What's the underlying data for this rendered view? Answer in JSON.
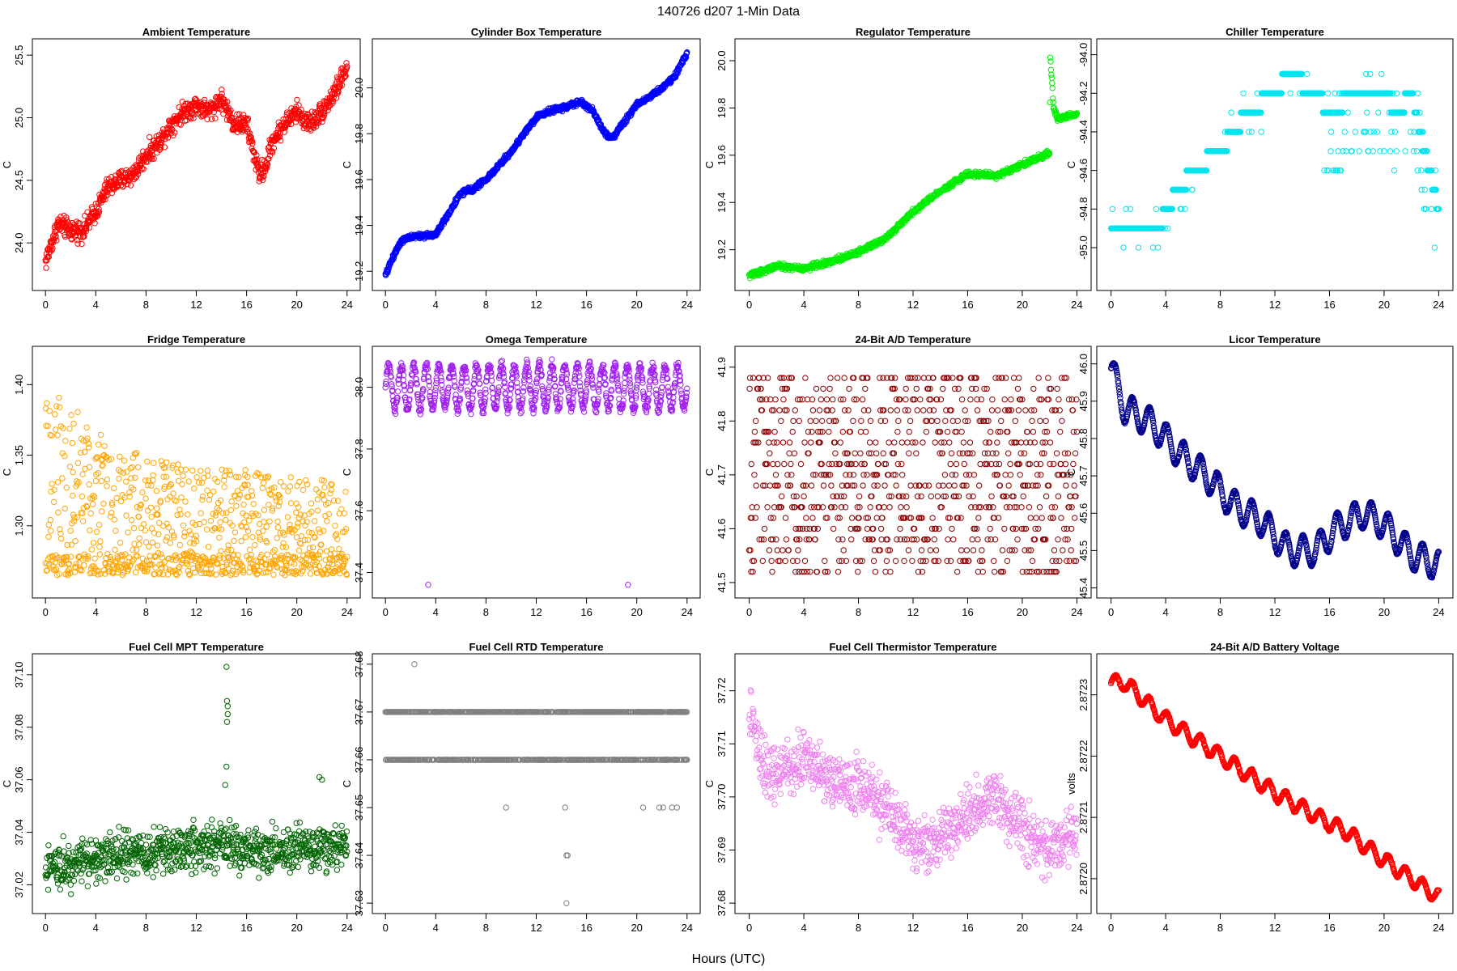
{
  "figure": {
    "title": "140726    d207    1-Min Data",
    "xlabel": "Hours (UTC)"
  },
  "chart_data": [
    {
      "type": "scatter",
      "title": "Ambient Temperature",
      "ylabel": "C",
      "color": "#ff0000",
      "xlim": [
        0,
        24
      ],
      "xticks": [
        0,
        4,
        8,
        12,
        16,
        20,
        24
      ],
      "ylim": [
        23.7,
        25.55
      ],
      "yticks": [
        24.0,
        24.5,
        25.0,
        25.5
      ],
      "ytick_labels": [
        "24.0",
        "24.5",
        "25.0",
        "25.5"
      ],
      "pattern": "noisy",
      "trend": [
        [
          0,
          23.85
        ],
        [
          1,
          24.15
        ],
        [
          2,
          24.1
        ],
        [
          3,
          24.1
        ],
        [
          4,
          24.25
        ],
        [
          5,
          24.45
        ],
        [
          6,
          24.5
        ],
        [
          7,
          24.55
        ],
        [
          8,
          24.7
        ],
        [
          9,
          24.8
        ],
        [
          10,
          24.95
        ],
        [
          11,
          25.05
        ],
        [
          12,
          25.1
        ],
        [
          13,
          25.05
        ],
        [
          14,
          25.15
        ],
        [
          15,
          24.95
        ],
        [
          16,
          24.95
        ],
        [
          17,
          24.55
        ],
        [
          17.5,
          24.6
        ],
        [
          18,
          24.8
        ],
        [
          19,
          24.95
        ],
        [
          20,
          25.05
        ],
        [
          21,
          24.95
        ],
        [
          22,
          25.05
        ],
        [
          23,
          25.2
        ],
        [
          24,
          25.4
        ]
      ],
      "noise": 0.07
    },
    {
      "type": "scatter",
      "title": "Cylinder Box Temperature",
      "ylabel": "C",
      "color": "#0000ff",
      "xlim": [
        0,
        24
      ],
      "xticks": [
        0,
        4,
        8,
        12,
        16,
        20,
        24
      ],
      "ylim": [
        19.16,
        20.17
      ],
      "yticks": [
        19.2,
        19.4,
        19.6,
        19.8,
        20.0
      ],
      "ytick_labels": [
        "19.2",
        "19.4",
        "19.6",
        "19.8",
        "20.0"
      ],
      "pattern": "smooth",
      "trend": [
        [
          0,
          19.18
        ],
        [
          0.5,
          19.25
        ],
        [
          1.2,
          19.33
        ],
        [
          2,
          19.35
        ],
        [
          4,
          19.36
        ],
        [
          5,
          19.45
        ],
        [
          6,
          19.54
        ],
        [
          7,
          19.56
        ],
        [
          8,
          19.6
        ],
        [
          9,
          19.66
        ],
        [
          10,
          19.72
        ],
        [
          11,
          19.8
        ],
        [
          12,
          19.87
        ],
        [
          13,
          19.9
        ],
        [
          14,
          19.91
        ],
        [
          15.5,
          19.94
        ],
        [
          16.5,
          19.9
        ],
        [
          17.5,
          19.8
        ],
        [
          18,
          19.78
        ],
        [
          19,
          19.85
        ],
        [
          20,
          19.93
        ],
        [
          21,
          19.96
        ],
        [
          22,
          20.0
        ],
        [
          23,
          20.05
        ],
        [
          24,
          20.15
        ]
      ],
      "noise": 0.01
    },
    {
      "type": "scatter",
      "title": "Regulator Temperature",
      "ylabel": "C",
      "color": "#00ee00",
      "xlim": [
        0,
        24
      ],
      "xticks": [
        0,
        4,
        8,
        12,
        16,
        20,
        24
      ],
      "ylim": [
        19.07,
        20.05
      ],
      "yticks": [
        19.2,
        19.4,
        19.6,
        19.8,
        20.0
      ],
      "ytick_labels": [
        "19.2",
        "19.4",
        "19.6",
        "19.8",
        "20.0"
      ],
      "pattern": "smooth",
      "trend": [
        [
          0,
          19.09
        ],
        [
          2,
          19.13
        ],
        [
          4,
          19.12
        ],
        [
          6,
          19.15
        ],
        [
          8,
          19.19
        ],
        [
          10,
          19.25
        ],
        [
          12,
          19.36
        ],
        [
          14,
          19.45
        ],
        [
          16,
          19.52
        ],
        [
          17,
          19.52
        ],
        [
          18,
          19.51
        ],
        [
          20,
          19.56
        ],
        [
          22,
          19.61
        ],
        [
          22.05,
          20.02
        ],
        [
          22.3,
          19.8
        ],
        [
          22.6,
          19.75
        ],
        [
          24,
          19.78
        ]
      ],
      "noise": 0.01
    },
    {
      "type": "scatter",
      "title": "Chiller Temperature",
      "ylabel": "C",
      "color": "#00e5ee",
      "xlim": [
        0,
        24
      ],
      "xticks": [
        0,
        4,
        8,
        12,
        16,
        20,
        24
      ],
      "ylim": [
        -95.17,
        -93.97
      ],
      "yticks": [
        -95.0,
        -94.8,
        -94.6,
        -94.4,
        -94.2,
        -94.0
      ],
      "ytick_labels": [
        "-95.0",
        "-94.8",
        "-94.6",
        "-94.4",
        "-94.2",
        "-94.0"
      ],
      "pattern": "steps",
      "trend": [
        [
          0,
          -94.9
        ],
        [
          3.5,
          -94.9
        ],
        [
          4,
          -94.8
        ],
        [
          5,
          -94.7
        ],
        [
          6,
          -94.6
        ],
        [
          8,
          -94.5
        ],
        [
          9,
          -94.4
        ],
        [
          10,
          -94.3
        ],
        [
          12,
          -94.2
        ],
        [
          13,
          -94.1
        ],
        [
          15,
          -94.2
        ],
        [
          16,
          -94.3
        ],
        [
          18,
          -94.2
        ],
        [
          20,
          -94.2
        ],
        [
          21,
          -94.3
        ],
        [
          22,
          -94.2
        ],
        [
          23,
          -94.5
        ],
        [
          24,
          -94.8
        ]
      ],
      "noise": 0.0
    },
    {
      "type": "scatter",
      "title": "Fridge Temperature",
      "ylabel": "C",
      "color": "#ffa500",
      "xlim": [
        0,
        24
      ],
      "xticks": [
        0,
        4,
        8,
        12,
        16,
        20,
        24
      ],
      "ylim": [
        1.256,
        1.42
      ],
      "yticks": [
        1.3,
        1.35,
        1.4
      ],
      "ytick_labels": [
        "1.30",
        "1.35",
        "1.40"
      ],
      "pattern": "fridge",
      "trend": [
        [
          0,
          1.4
        ],
        [
          4,
          1.37
        ],
        [
          8,
          1.35
        ],
        [
          12,
          1.34
        ],
        [
          16,
          1.34
        ],
        [
          20,
          1.335
        ],
        [
          24,
          1.33
        ]
      ],
      "noise": 0.0
    },
    {
      "type": "scatter",
      "title": "Omega Temperature",
      "ylabel": "C",
      "color": "#a020f0",
      "xlim": [
        0,
        24
      ],
      "xticks": [
        0,
        4,
        8,
        12,
        16,
        20,
        24
      ],
      "ylim": [
        37.35,
        38.1
      ],
      "yticks": [
        37.4,
        37.6,
        37.8,
        38.0
      ],
      "ytick_labels": [
        "37.4",
        "37.6",
        "37.8",
        "38.0"
      ],
      "pattern": "osc",
      "trend": [
        [
          0,
          38.0
        ],
        [
          24,
          38.0
        ]
      ],
      "amplitude": 0.07,
      "period": 1.0,
      "noise": 0.015,
      "outliers": [
        [
          3.4,
          37.36
        ],
        [
          19.3,
          37.36
        ]
      ]
    },
    {
      "type": "scatter",
      "title": "24-Bit A/D Temperature",
      "ylabel": "C",
      "color": "#8b0000",
      "xlim": [
        0,
        24
      ],
      "xticks": [
        0,
        4,
        8,
        12,
        16,
        20,
        24
      ],
      "ylim": [
        41.49,
        41.92
      ],
      "yticks": [
        41.5,
        41.6,
        41.7,
        41.8,
        41.9
      ],
      "ytick_labels": [
        "41.5",
        "41.6",
        "41.7",
        "41.8",
        "41.9"
      ],
      "pattern": "quantized",
      "trend": [
        [
          0,
          41.7
        ],
        [
          24,
          41.72
        ]
      ],
      "levels": [
        41.52,
        41.54,
        41.56,
        41.58,
        41.6,
        41.62,
        41.64,
        41.66,
        41.68,
        41.7,
        41.72,
        41.74,
        41.76,
        41.78,
        41.8,
        41.82,
        41.84,
        41.86,
        41.88
      ],
      "noise": 0.0
    },
    {
      "type": "scatter",
      "title": "Licor Temperature",
      "ylabel": "C",
      "color": "#00008b",
      "xlim": [
        0,
        24
      ],
      "xticks": [
        0,
        4,
        8,
        12,
        16,
        20,
        24
      ],
      "ylim": [
        45.4,
        46.02
      ],
      "yticks": [
        45.4,
        45.5,
        45.6,
        45.7,
        45.8,
        45.9,
        46.0
      ],
      "ytick_labels": [
        "45.4",
        "45.5",
        "45.6",
        "45.7",
        "45.8",
        "45.9",
        "46.0"
      ],
      "pattern": "osc",
      "trend": [
        [
          0,
          45.99
        ],
        [
          1,
          45.88
        ],
        [
          3,
          45.84
        ],
        [
          5,
          45.76
        ],
        [
          7,
          45.7
        ],
        [
          9,
          45.62
        ],
        [
          11,
          45.58
        ],
        [
          13,
          45.5
        ],
        [
          15,
          45.5
        ],
        [
          16.5,
          45.56
        ],
        [
          18.5,
          45.6
        ],
        [
          20,
          45.57
        ],
        [
          22,
          45.49
        ],
        [
          24,
          45.46
        ]
      ],
      "amplitude": 0.04,
      "period": 1.25,
      "noise": 0.002
    },
    {
      "type": "scatter",
      "title": "Fuel Cell MPT Temperature",
      "ylabel": "C",
      "color": "#006400",
      "xlim": [
        0,
        24
      ],
      "xticks": [
        0,
        4,
        8,
        12,
        16,
        20,
        24
      ],
      "ylim": [
        37.013,
        37.104
      ],
      "yticks": [
        37.02,
        37.04,
        37.06,
        37.08,
        37.1
      ],
      "ytick_labels": [
        "37.02",
        "37.04",
        "37.06",
        "37.08",
        "37.10"
      ],
      "pattern": "noisy",
      "trend": [
        [
          0,
          37.027
        ],
        [
          4,
          37.03
        ],
        [
          8,
          37.032
        ],
        [
          12,
          37.034
        ],
        [
          14,
          37.036
        ],
        [
          16,
          37.033
        ],
        [
          20,
          37.034
        ],
        [
          24,
          37.035
        ]
      ],
      "noise": 0.0075,
      "outliers": [
        [
          14.4,
          37.103
        ],
        [
          14.45,
          37.09
        ],
        [
          14.5,
          37.088
        ],
        [
          14.45,
          37.082
        ],
        [
          14.5,
          37.085
        ],
        [
          14.4,
          37.065
        ],
        [
          14.3,
          37.058
        ],
        [
          21.8,
          37.061
        ],
        [
          22.0,
          37.06
        ]
      ]
    },
    {
      "type": "scatter",
      "title": "Fuel Cell RTD Temperature",
      "ylabel": "C",
      "color": "#808080",
      "xlim": [
        0,
        24
      ],
      "xticks": [
        0,
        4,
        8,
        12,
        16,
        20,
        24
      ],
      "ylim": [
        37.63,
        37.68
      ],
      "yticks": [
        37.63,
        37.64,
        37.65,
        37.66,
        37.67,
        37.68
      ],
      "ytick_labels": [
        "37.63",
        "37.64",
        "37.65",
        "37.66",
        "37.67",
        "37.68"
      ],
      "pattern": "twolevel",
      "trend": [
        [
          0,
          37.67
        ],
        [
          24,
          37.66
        ]
      ],
      "levels": [
        37.67,
        37.66
      ],
      "noise": 0.0,
      "outliers": [
        [
          2.3,
          37.68
        ],
        [
          9.6,
          37.65
        ],
        [
          14.3,
          37.65
        ],
        [
          20.5,
          37.65
        ],
        [
          21.8,
          37.65
        ],
        [
          22.1,
          37.65
        ],
        [
          22.8,
          37.65
        ],
        [
          23.2,
          37.65
        ],
        [
          14.4,
          37.64
        ],
        [
          14.5,
          37.64
        ],
        [
          14.4,
          37.63
        ]
      ]
    },
    {
      "type": "scatter",
      "title": "Fuel Cell Thermistor Temperature",
      "ylabel": "C",
      "color": "#ee82ee",
      "xlim": [
        0,
        24
      ],
      "xticks": [
        0,
        4,
        8,
        12,
        16,
        20,
        24
      ],
      "ylim": [
        37.68,
        37.725
      ],
      "yticks": [
        37.68,
        37.69,
        37.7,
        37.71,
        37.72
      ],
      "ytick_labels": [
        "37.68",
        "37.69",
        "37.70",
        "37.71",
        "37.72"
      ],
      "pattern": "noisy",
      "trend": [
        [
          0,
          37.716
        ],
        [
          1,
          37.705
        ],
        [
          3,
          37.705
        ],
        [
          4,
          37.708
        ],
        [
          6,
          37.703
        ],
        [
          8,
          37.703
        ],
        [
          10,
          37.698
        ],
        [
          12,
          37.692
        ],
        [
          14,
          37.692
        ],
        [
          16,
          37.697
        ],
        [
          18,
          37.7
        ],
        [
          20,
          37.694
        ],
        [
          22,
          37.69
        ],
        [
          24,
          37.693
        ]
      ],
      "noise": 0.0045
    },
    {
      "type": "scatter",
      "title": "24-Bit A/D Battery Voltage",
      "ylabel": "volts",
      "color": "#ff0000",
      "xlim": [
        0,
        24
      ],
      "xticks": [
        0,
        4,
        8,
        12,
        16,
        20,
        24
      ],
      "ylim": [
        2.87196,
        2.87235
      ],
      "yticks": [
        2.872,
        2.8721,
        2.8722,
        2.8723
      ],
      "ytick_labels": [
        "2.8720",
        "2.8721",
        "2.8722",
        "2.8723"
      ],
      "pattern": "osc",
      "trend": [
        [
          0,
          2.87232
        ],
        [
          1,
          2.87232
        ],
        [
          4,
          2.87226
        ],
        [
          8,
          2.8722
        ],
        [
          12,
          2.87214
        ],
        [
          16,
          2.87209
        ],
        [
          17,
          2.87208
        ],
        [
          20,
          2.87203
        ],
        [
          22,
          2.872
        ],
        [
          24,
          2.87197
        ]
      ],
      "amplitude": 1.2e-05,
      "period": 1.25,
      "noise": 1.5e-06
    }
  ]
}
